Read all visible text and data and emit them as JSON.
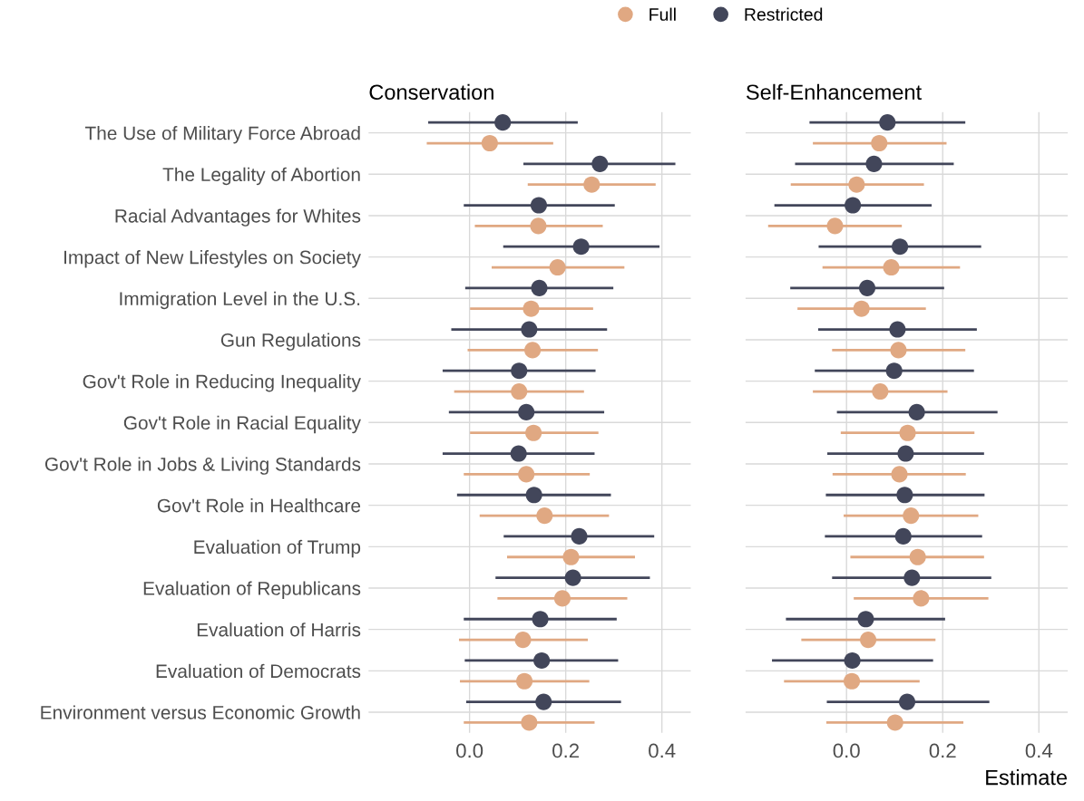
{
  "chart_data": [
    {
      "type": "scatter",
      "orientation": "horizontal",
      "title": "Conservation",
      "categories": [
        "The Use of Military Force Abroad",
        "The Legality of Abortion",
        "Racial Advantages for Whites",
        "Impact of New Lifestyles on Society",
        "Immigration Level in the U.S.",
        "Gun Regulations",
        "Gov't Role in Reducing Inequality",
        "Gov't Role in Racial Equality",
        "Gov't Role in Jobs & Living Standards",
        "Gov't Role in Healthcare",
        "Evaluation of Trump",
        "Evaluation of Republicans",
        "Evaluation of Harris",
        "Evaluation of Democrats",
        "Environment versus Economic Growth"
      ],
      "series": [
        {
          "name": "Full",
          "color": "#e0a882",
          "values": [
            0.042,
            0.254,
            0.143,
            0.183,
            0.128,
            0.131,
            0.103,
            0.133,
            0.118,
            0.156,
            0.211,
            0.193,
            0.111,
            0.114,
            0.124
          ],
          "errors": [
            [
              -0.089,
              0.174
            ],
            [
              0.121,
              0.387
            ],
            [
              0.011,
              0.277
            ],
            [
              0.046,
              0.322
            ],
            [
              0.001,
              0.257
            ],
            [
              -0.004,
              0.267
            ],
            [
              -0.032,
              0.238
            ],
            [
              0.001,
              0.268
            ],
            [
              -0.012,
              0.25
            ],
            [
              0.021,
              0.29
            ],
            [
              0.078,
              0.344
            ],
            [
              0.058,
              0.328
            ],
            [
              -0.022,
              0.246
            ],
            [
              -0.02,
              0.249
            ],
            [
              -0.012,
              0.26
            ]
          ]
        },
        {
          "name": "Restricted",
          "color": "#42465a",
          "values": [
            0.069,
            0.271,
            0.144,
            0.232,
            0.145,
            0.124,
            0.103,
            0.118,
            0.102,
            0.134,
            0.228,
            0.215,
            0.147,
            0.15,
            0.154
          ],
          "errors": [
            [
              -0.086,
              0.225
            ],
            [
              0.112,
              0.428
            ],
            [
              -0.012,
              0.302
            ],
            [
              0.07,
              0.395
            ],
            [
              -0.009,
              0.299
            ],
            [
              -0.038,
              0.286
            ],
            [
              -0.056,
              0.262
            ],
            [
              -0.043,
              0.28
            ],
            [
              -0.056,
              0.26
            ],
            [
              -0.026,
              0.294
            ],
            [
              0.071,
              0.384
            ],
            [
              0.054,
              0.375
            ],
            [
              -0.012,
              0.306
            ],
            [
              -0.01,
              0.309
            ],
            [
              -0.007,
              0.315
            ]
          ]
        }
      ],
      "xlim": [
        -0.21,
        0.46
      ],
      "xticks": [
        {
          "value": 0,
          "label": "0.0"
        },
        {
          "value": 0.2,
          "label": "0.2"
        },
        {
          "value": 0.4,
          "label": "0.4"
        }
      ],
      "grid": true,
      "legend": "top",
      "marker": "circle"
    },
    {
      "type": "scatter",
      "orientation": "horizontal",
      "title": "Self-Enhancement",
      "xlabel": "Estimate",
      "categories": [
        null,
        null,
        null,
        null,
        null,
        null,
        null,
        null,
        null,
        null,
        null,
        null,
        null,
        null,
        null
      ],
      "series": [
        {
          "name": "Full",
          "color": "#e0a882",
          "values": [
            0.068,
            0.021,
            -0.024,
            0.093,
            0.031,
            0.108,
            0.07,
            0.127,
            0.11,
            0.134,
            0.148,
            0.155,
            0.045,
            0.011,
            0.101
          ],
          "errors": [
            [
              -0.07,
              0.208
            ],
            [
              -0.116,
              0.161
            ],
            [
              -0.163,
              0.115
            ],
            [
              -0.05,
              0.236
            ],
            [
              -0.102,
              0.165
            ],
            [
              -0.03,
              0.247
            ],
            [
              -0.07,
              0.21
            ],
            [
              -0.012,
              0.266
            ],
            [
              -0.029,
              0.248
            ],
            [
              -0.006,
              0.274
            ],
            [
              0.008,
              0.286
            ],
            [
              0.015,
              0.295
            ],
            [
              -0.094,
              0.185
            ],
            [
              -0.13,
              0.152
            ],
            [
              -0.042,
              0.243
            ]
          ]
        },
        {
          "name": "Restricted",
          "color": "#42465a",
          "values": [
            0.085,
            0.057,
            0.013,
            0.111,
            0.043,
            0.106,
            0.099,
            0.146,
            0.123,
            0.121,
            0.118,
            0.136,
            0.04,
            0.012,
            0.126
          ],
          "errors": [
            [
              -0.077,
              0.247
            ],
            [
              -0.107,
              0.223
            ],
            [
              -0.15,
              0.177
            ],
            [
              -0.058,
              0.28
            ],
            [
              -0.117,
              0.203
            ],
            [
              -0.059,
              0.271
            ],
            [
              -0.066,
              0.265
            ],
            [
              -0.02,
              0.314
            ],
            [
              -0.04,
              0.286
            ],
            [
              -0.043,
              0.287
            ],
            [
              -0.045,
              0.282
            ],
            [
              -0.03,
              0.301
            ],
            [
              -0.126,
              0.205
            ],
            [
              -0.155,
              0.18
            ],
            [
              -0.041,
              0.297
            ]
          ]
        }
      ],
      "xlim": [
        -0.21,
        0.46
      ],
      "xticks": [
        {
          "value": 0,
          "label": "0.0"
        },
        {
          "value": 0.2,
          "label": "0.2"
        },
        {
          "value": 0.4,
          "label": "0.4"
        }
      ],
      "grid": true,
      "tick_labels": "x",
      "marker": "circle"
    }
  ]
}
